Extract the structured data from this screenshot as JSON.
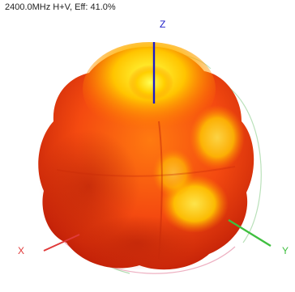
{
  "caption": "2400.0MHz H+V, Eff: 41.0%",
  "axes": {
    "z_label": "Z",
    "x_label": "X",
    "y_label": "Y",
    "x_color": "#e03a3a",
    "y_color": "#3fbf3f",
    "z_color": "#1c1cc8"
  },
  "pattern_colors": {
    "hot": "#ffff33",
    "mid": "#ffad00",
    "base": "#f03a10",
    "dark": "#b01a08"
  }
}
